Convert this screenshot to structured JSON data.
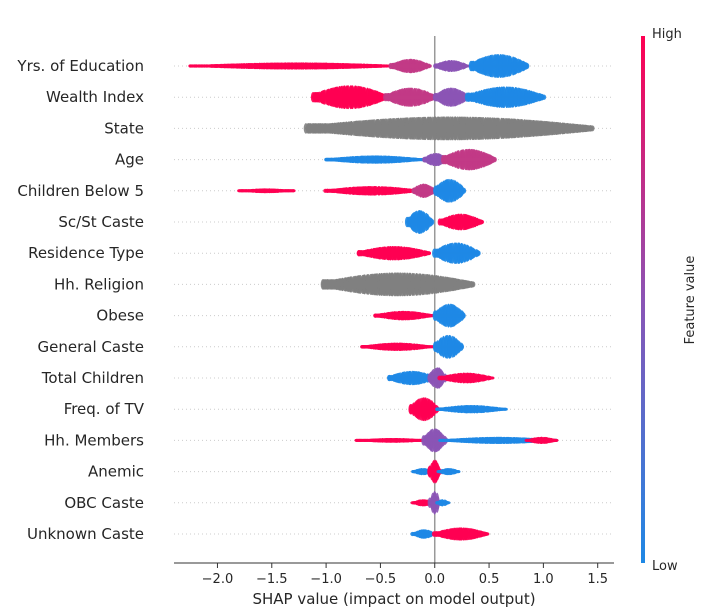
{
  "chart_data": {
    "type": "scatter",
    "subtype": "shap-beeswarm-summary",
    "xlabel": "SHAP value (impact on model output)",
    "xlim": [
      -2.4,
      1.65
    ],
    "xticks": [
      -2.0,
      -1.5,
      -1.0,
      -0.5,
      0.0,
      0.5,
      1.0,
      1.5
    ],
    "xtick_labels": [
      "−2.0",
      "−1.5",
      "−1.0",
      "−0.5",
      "0.0",
      "0.5",
      "1.0",
      "1.5"
    ],
    "colorbar": {
      "title": "Feature value",
      "high_label": "High",
      "low_label": "Low",
      "high_color": "#ff0052",
      "low_color": "#1e88e5",
      "mid_color": "#8b54b5",
      "missing_color": "#808080"
    },
    "features": [
      {
        "name": "Yrs. of Education",
        "segments": [
          {
            "from": -2.25,
            "to": -0.3,
            "width": 0.3,
            "color": "high"
          },
          {
            "from": -0.4,
            "to": -0.05,
            "width": 0.6,
            "color": "mid-high"
          },
          {
            "from": 0.0,
            "to": 0.3,
            "width": 0.5,
            "color": "mid"
          },
          {
            "from": 0.33,
            "to": 0.85,
            "width": 1.0,
            "color": "low"
          }
        ]
      },
      {
        "name": "Wealth Index",
        "segments": [
          {
            "from": -1.12,
            "to": -0.45,
            "width": 1.0,
            "color": "high"
          },
          {
            "from": -0.45,
            "to": 0.0,
            "width": 0.8,
            "color": "mid-high"
          },
          {
            "from": 0.0,
            "to": 0.3,
            "width": 0.8,
            "color": "mid"
          },
          {
            "from": 0.3,
            "to": 1.0,
            "width": 0.9,
            "color": "low"
          }
        ]
      },
      {
        "name": "State",
        "segments": [
          {
            "from": -1.18,
            "to": 1.45,
            "width": 1.0,
            "color": "missing"
          }
        ]
      },
      {
        "name": "Age",
        "segments": [
          {
            "from": -1.0,
            "to": -0.1,
            "width": 0.35,
            "color": "low"
          },
          {
            "from": -0.1,
            "to": 0.12,
            "width": 0.55,
            "color": "mid"
          },
          {
            "from": 0.08,
            "to": 0.55,
            "width": 0.9,
            "color": "mid-high"
          }
        ]
      },
      {
        "name": "Children Below 5",
        "segments": [
          {
            "from": -1.8,
            "to": -1.3,
            "width": 0.2,
            "color": "high"
          },
          {
            "from": -1.0,
            "to": -0.15,
            "width": 0.4,
            "color": "high"
          },
          {
            "from": -0.2,
            "to": 0.0,
            "width": 0.6,
            "color": "mid-high"
          },
          {
            "from": 0.0,
            "to": 0.27,
            "width": 1.0,
            "color": "low"
          }
        ]
      },
      {
        "name": "Sc/St Caste",
        "segments": [
          {
            "from": -0.25,
            "to": -0.03,
            "width": 1.0,
            "color": "low"
          },
          {
            "from": 0.05,
            "to": 0.43,
            "width": 0.7,
            "color": "high"
          }
        ]
      },
      {
        "name": "Residence Type",
        "segments": [
          {
            "from": -0.7,
            "to": -0.05,
            "width": 0.6,
            "color": "high"
          },
          {
            "from": 0.0,
            "to": 0.4,
            "width": 0.9,
            "color": "low"
          }
        ]
      },
      {
        "name": "Hh. Religion",
        "segments": [
          {
            "from": -1.03,
            "to": 0.35,
            "width": 1.0,
            "color": "missing"
          }
        ]
      },
      {
        "name": "Obese",
        "segments": [
          {
            "from": -0.55,
            "to": -0.02,
            "width": 0.4,
            "color": "high"
          },
          {
            "from": 0.0,
            "to": 0.27,
            "width": 1.0,
            "color": "low"
          }
        ]
      },
      {
        "name": "General Caste",
        "segments": [
          {
            "from": -0.67,
            "to": -0.02,
            "width": 0.35,
            "color": "high"
          },
          {
            "from": 0.0,
            "to": 0.25,
            "width": 1.0,
            "color": "low"
          }
        ]
      },
      {
        "name": "Total Children",
        "segments": [
          {
            "from": -0.42,
            "to": 0.0,
            "width": 0.6,
            "color": "low"
          },
          {
            "from": -0.05,
            "to": 0.1,
            "width": 0.9,
            "color": "mid"
          },
          {
            "from": 0.05,
            "to": 0.53,
            "width": 0.45,
            "color": "high"
          }
        ]
      },
      {
        "name": "Freq. of TV",
        "segments": [
          {
            "from": -0.22,
            "to": 0.02,
            "width": 1.0,
            "color": "high"
          },
          {
            "from": 0.02,
            "to": 0.65,
            "width": 0.35,
            "color": "low"
          }
        ]
      },
      {
        "name": "Hh. Members",
        "segments": [
          {
            "from": -0.72,
            "to": -0.05,
            "width": 0.2,
            "color": "high"
          },
          {
            "from": -0.1,
            "to": 0.1,
            "width": 1.0,
            "color": "mid"
          },
          {
            "from": 0.05,
            "to": 1.12,
            "width": 0.3,
            "color": "low"
          },
          {
            "from": 0.85,
            "to": 1.12,
            "width": 0.3,
            "color": "high"
          }
        ]
      },
      {
        "name": "Anemic",
        "segments": [
          {
            "from": -0.2,
            "to": -0.02,
            "width": 0.3,
            "color": "low"
          },
          {
            "from": -0.05,
            "to": 0.05,
            "width": 1.0,
            "color": "high"
          },
          {
            "from": 0.04,
            "to": 0.22,
            "width": 0.3,
            "color": "low"
          }
        ]
      },
      {
        "name": "OBC Caste",
        "segments": [
          {
            "from": -0.2,
            "to": -0.01,
            "width": 0.3,
            "color": "high"
          },
          {
            "from": -0.04,
            "to": 0.04,
            "width": 1.0,
            "color": "mid"
          },
          {
            "from": 0.02,
            "to": 0.12,
            "width": 0.3,
            "color": "low"
          }
        ]
      },
      {
        "name": "Unknown Caste",
        "segments": [
          {
            "from": -0.2,
            "to": 0.0,
            "width": 0.4,
            "color": "low"
          },
          {
            "from": 0.0,
            "to": 0.48,
            "width": 0.55,
            "color": "high"
          }
        ]
      }
    ]
  }
}
